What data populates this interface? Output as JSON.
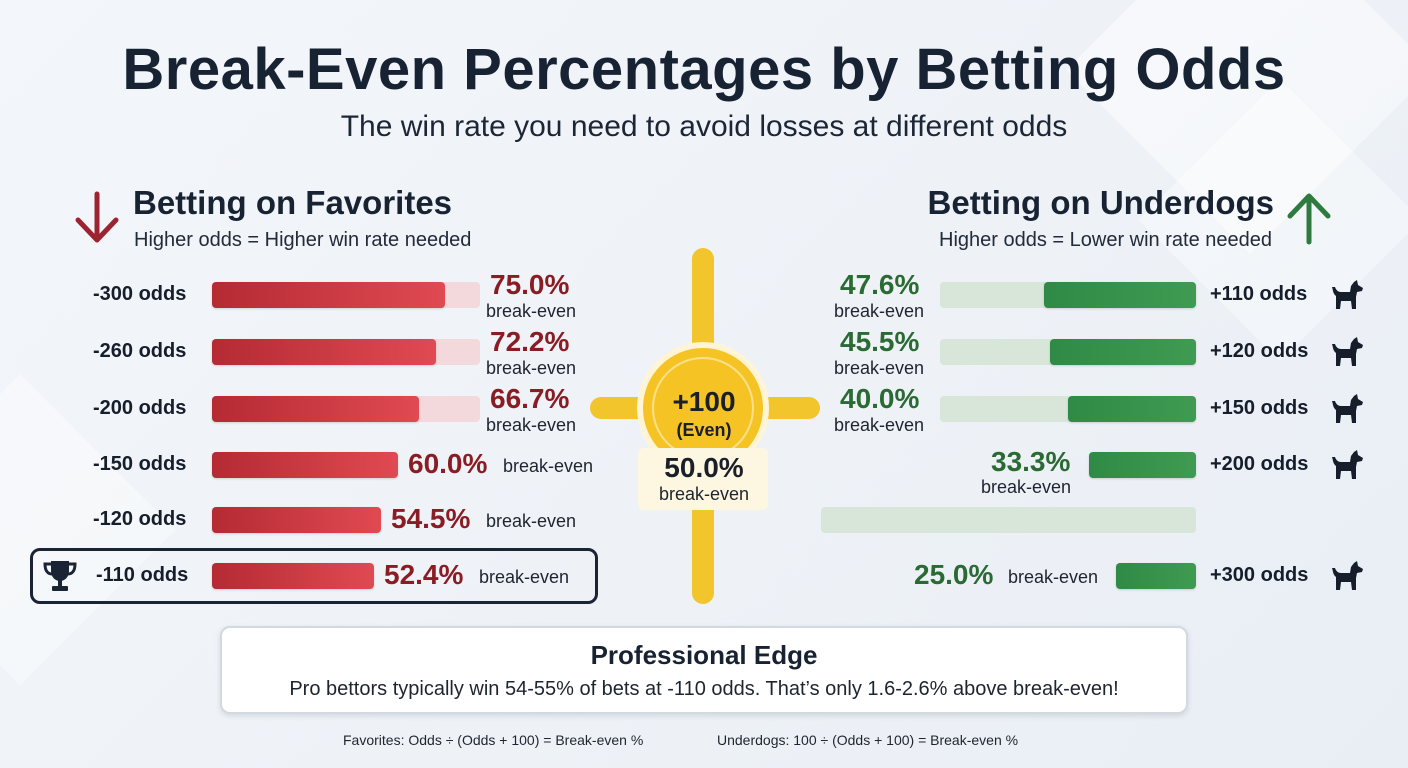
{
  "title": "Break-Even Percentages by Betting Odds",
  "subtitle": "The win rate you need to avoid losses at different odds",
  "favorites": {
    "title": "Betting on Favorites",
    "subtitle": "Higher odds = Higher win rate needed",
    "arrow": "arrow-down-icon",
    "color": "#b52a33"
  },
  "underdogs": {
    "title": "Betting on Underdogs",
    "subtitle": "Higher odds = Lower win rate needed",
    "arrow": "arrow-up-icon",
    "color": "#2f8a45"
  },
  "center": {
    "odds": "+100",
    "label": "(Even)",
    "pct": "50.0%",
    "caption": "break-even",
    "color": "#f2c12e"
  },
  "highlight_icon": "trophy-icon",
  "row_icon": "dog-icon",
  "chart_data": {
    "type": "bar",
    "series": [
      {
        "name": "Betting on Favorites",
        "categories": [
          "-300 odds",
          "-260 odds",
          "-200 odds",
          "-150 odds",
          "-120 odds",
          "-110 odds"
        ],
        "values": [
          75.0,
          72.2,
          66.7,
          60.0,
          54.5,
          52.4
        ],
        "labels": [
          "75.0%",
          "72.2%",
          "66.7%",
          "60.0%",
          "54.5%",
          "52.4%"
        ],
        "caption": "break-even"
      },
      {
        "name": "Betting on Underdogs",
        "categories": [
          "+110 odds",
          "+120 odds",
          "+150 odds",
          "+200 odds",
          "",
          "+300 odds"
        ],
        "values": [
          47.6,
          45.5,
          40.0,
          33.3,
          null,
          25.0
        ],
        "labels": [
          "47.6%",
          "45.5%",
          "40.0%",
          "33.3%",
          "",
          "25.0%"
        ],
        "caption": "break-even"
      }
    ],
    "ylim": [
      0,
      100
    ]
  },
  "edge": {
    "title": "Professional Edge",
    "text": "Pro bettors typically win 54-55% of bets at -110 odds. That’s only 1.6-2.6% above break-even!"
  },
  "formulas": {
    "favorites": "Favorites: Odds ÷ (Odds + 100) = Break-even %",
    "underdogs": "Underdogs: 100 ÷ (Odds + 100) = Break-even %"
  }
}
